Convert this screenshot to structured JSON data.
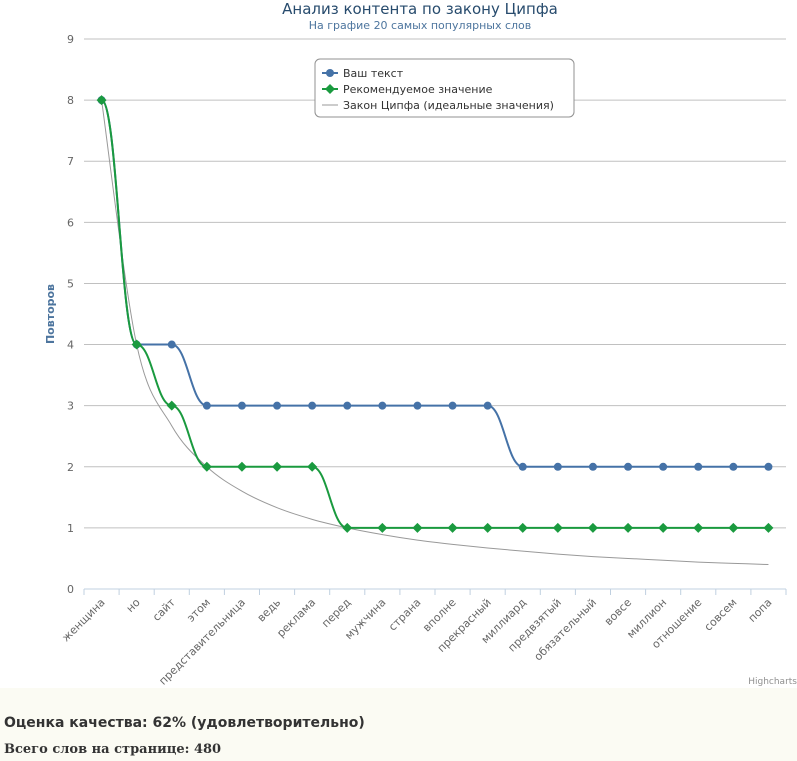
{
  "chart_data": {
    "type": "line",
    "title": "Анализ контента по закону Ципфа",
    "subtitle": "На графие 20 самых популярных слов",
    "ylabel": "Повторов",
    "xlabel": "",
    "ylim": [
      0,
      9
    ],
    "yticks": [
      0,
      1,
      2,
      3,
      4,
      5,
      6,
      7,
      8,
      9
    ],
    "grid": true,
    "legend_position": "top-center",
    "categories": [
      "женщина",
      "но",
      "сайт",
      "этом",
      "представительница",
      "ведь",
      "реклама",
      "перед",
      "мужчина",
      "страна",
      "вполне",
      "прекрасный",
      "миллиард",
      "предвзятый",
      "обязательный",
      "вовсе",
      "миллион",
      "отношение",
      "совсем",
      "попа"
    ],
    "series": [
      {
        "name": "Ваш текст",
        "color": "#4572a7",
        "marker": "circle",
        "values": [
          8,
          4,
          4,
          3,
          3,
          3,
          3,
          3,
          3,
          3,
          3,
          3,
          2,
          2,
          2,
          2,
          2,
          2,
          2,
          2
        ]
      },
      {
        "name": "Рекомендуемое значение",
        "color": "#1a9a3f",
        "marker": "diamond",
        "values": [
          8,
          4,
          3,
          2,
          2,
          2,
          2,
          1,
          1,
          1,
          1,
          1,
          1,
          1,
          1,
          1,
          1,
          1,
          1,
          1
        ]
      },
      {
        "name": "Закон Ципфа (идеальные значения)",
        "color": "#999999",
        "marker": "none",
        "values": [
          8,
          4,
          2.67,
          2,
          1.6,
          1.33,
          1.14,
          1,
          0.89,
          0.8,
          0.73,
          0.67,
          0.62,
          0.57,
          0.53,
          0.5,
          0.47,
          0.44,
          0.42,
          0.4
        ]
      }
    ],
    "credit": "Highcharts"
  },
  "footer": {
    "quality": "Оценка качества: 62% (удовлетворительно)",
    "words": "Всего слов на странице: 480"
  }
}
